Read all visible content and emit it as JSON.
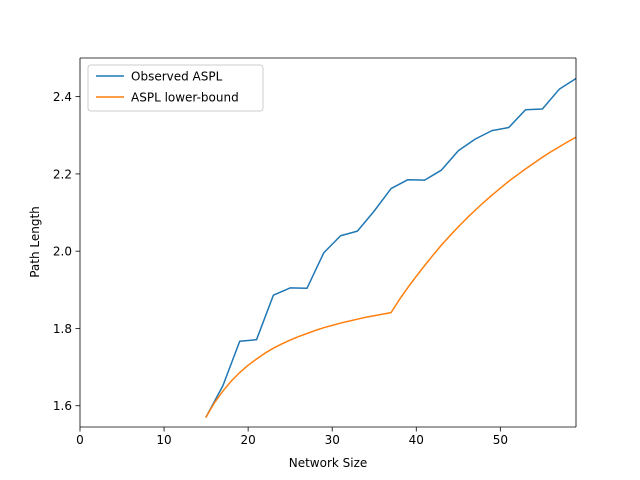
{
  "chart_data": {
    "type": "line",
    "title": "",
    "xlabel": "Network Size",
    "ylabel": "Path Length",
    "xlim": [
      0,
      59
    ],
    "ylim": [
      1.545,
      2.5
    ],
    "xticks": [
      0,
      10,
      20,
      30,
      40,
      50
    ],
    "yticks": [
      1.6,
      1.8,
      2.0,
      2.2,
      2.4
    ],
    "xtick_labels": [
      "0",
      "10",
      "20",
      "30",
      "40",
      "50"
    ],
    "ytick_labels": [
      "1.6",
      "1.8",
      "2.0",
      "2.2",
      "2.4"
    ],
    "grid": false,
    "legend_position": "top-left",
    "series": [
      {
        "name": "Observed ASPL",
        "color": "#1f77b4",
        "x": [
          15,
          17,
          19,
          21,
          23,
          25,
          27,
          29,
          31,
          33,
          35,
          37,
          39,
          41,
          43,
          45,
          47,
          49,
          51,
          53,
          55,
          57,
          59
        ],
        "y": [
          1.571,
          1.652,
          1.767,
          1.771,
          1.886,
          1.905,
          1.904,
          1.996,
          2.04,
          2.052,
          2.104,
          2.162,
          2.185,
          2.184,
          2.21,
          2.26,
          2.29,
          2.312,
          2.32,
          2.366,
          2.368,
          2.419,
          2.447
        ]
      },
      {
        "name": "ASPL lower-bound",
        "color": "#ff7f0e",
        "x": [
          15,
          16,
          17,
          18,
          19,
          20,
          21,
          22,
          23,
          24,
          25,
          26,
          27,
          28,
          29,
          30,
          31,
          32,
          33,
          34,
          35,
          36,
          37,
          38,
          39,
          40,
          41,
          42,
          43,
          44,
          45,
          46,
          47,
          48,
          49,
          50,
          51,
          52,
          53,
          54,
          55,
          56,
          57,
          58,
          59
        ],
        "y": [
          1.571,
          1.608,
          1.638,
          1.664,
          1.686,
          1.705,
          1.721,
          1.736,
          1.749,
          1.76,
          1.77,
          1.779,
          1.787,
          1.795,
          1.802,
          1.808,
          1.814,
          1.819,
          1.824,
          1.829,
          1.833,
          1.837,
          1.841,
          1.875,
          1.906,
          1.935,
          1.963,
          1.99,
          2.016,
          2.04,
          2.063,
          2.085,
          2.106,
          2.126,
          2.145,
          2.163,
          2.181,
          2.197,
          2.213,
          2.228,
          2.243,
          2.257,
          2.27,
          2.283,
          2.295
        ]
      }
    ]
  }
}
